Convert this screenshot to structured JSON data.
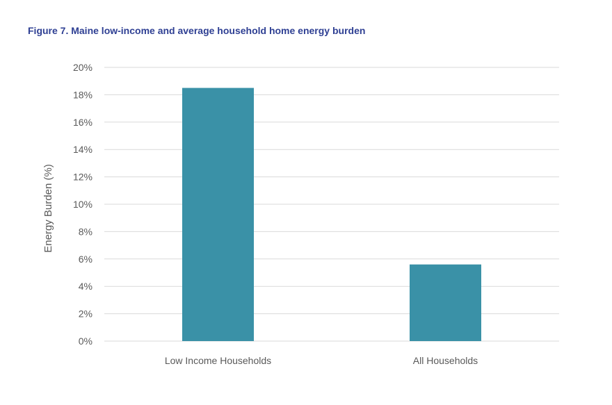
{
  "figure": {
    "title": "Figure 7. Maine low-income and average household home energy burden"
  },
  "colors": {
    "title": "#2e3f93",
    "bar": "#3a91a7",
    "grid": "#d9d9d9",
    "text": "#595959"
  },
  "chart_data": {
    "type": "bar",
    "title": "Figure 7. Maine low-income and average household home energy burden",
    "categories": [
      "Low Income Households",
      "All Households"
    ],
    "values": [
      18.5,
      5.6
    ],
    "xlabel": "",
    "ylabel": "Energy Burden (%)",
    "ylim": [
      0,
      20
    ],
    "yticks": [
      0,
      2,
      4,
      6,
      8,
      10,
      12,
      14,
      16,
      18,
      20
    ],
    "ytick_labels": [
      "0%",
      "2%",
      "4%",
      "6%",
      "8%",
      "10%",
      "12%",
      "14%",
      "16%",
      "18%",
      "20%"
    ],
    "grid": "horizontal",
    "legend": "none"
  }
}
